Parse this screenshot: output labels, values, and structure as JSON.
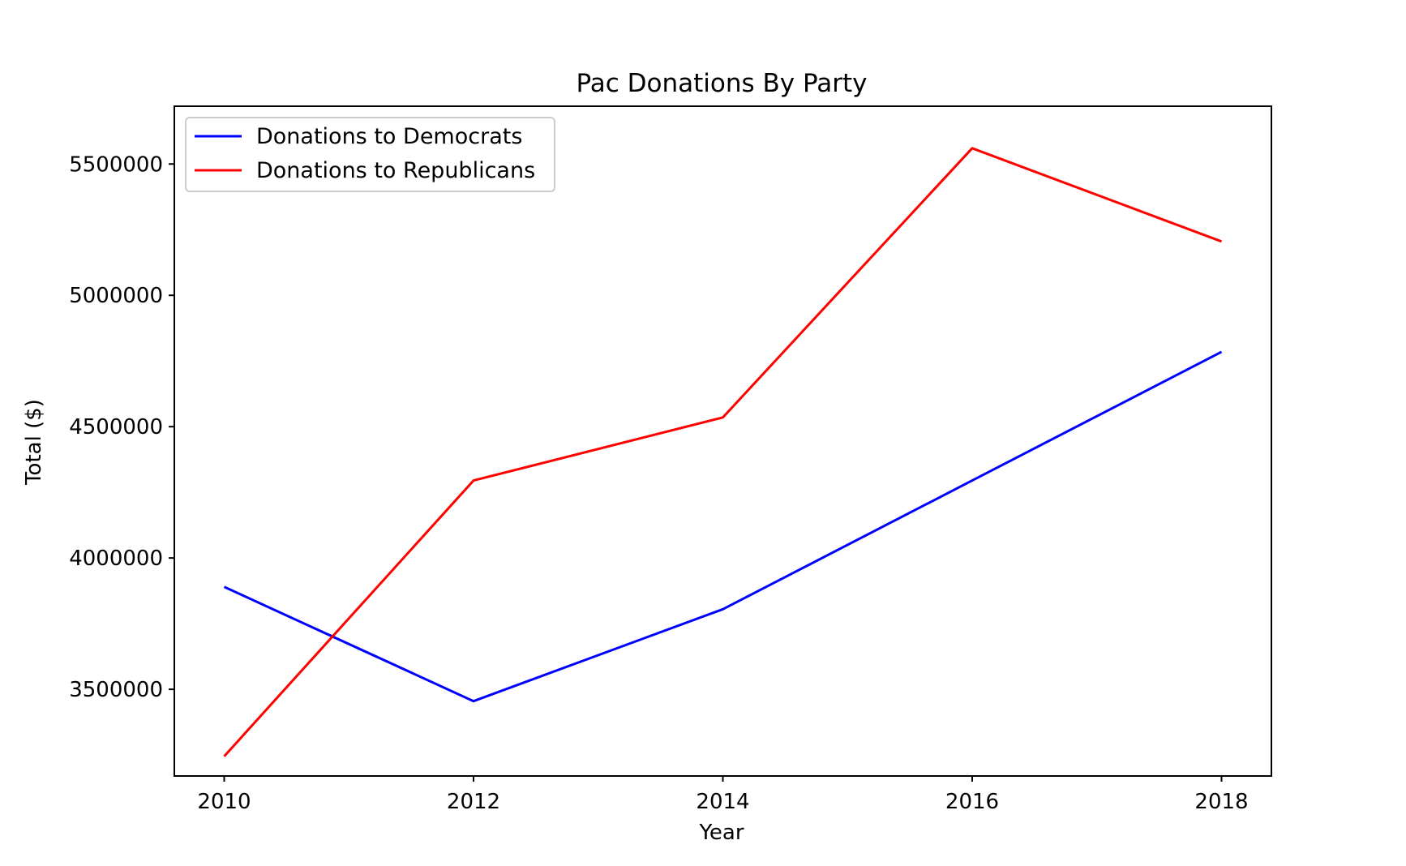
{
  "chart_data": {
    "type": "line",
    "title": "Pac Donations By Party",
    "xlabel": "Year",
    "ylabel": "Total ($)",
    "x": [
      2010,
      2012,
      2014,
      2016,
      2018
    ],
    "xticks": [
      2010,
      2012,
      2014,
      2016,
      2018
    ],
    "yticks": [
      3500000,
      4000000,
      4500000,
      5000000,
      5500000
    ],
    "xlim": [
      2009.6,
      2018.4
    ],
    "ylim": [
      3170000,
      5720000
    ],
    "grid": false,
    "legend_position": "top-left",
    "series": [
      {
        "name": "Donations to Democrats",
        "color": "#0000ff",
        "values": [
          3890000,
          3455000,
          3805000,
          4295000,
          4785000
        ]
      },
      {
        "name": "Donations to Republicans",
        "color": "#ff0000",
        "values": [
          3245000,
          4295000,
          4535000,
          5560000,
          5205000
        ]
      }
    ]
  }
}
